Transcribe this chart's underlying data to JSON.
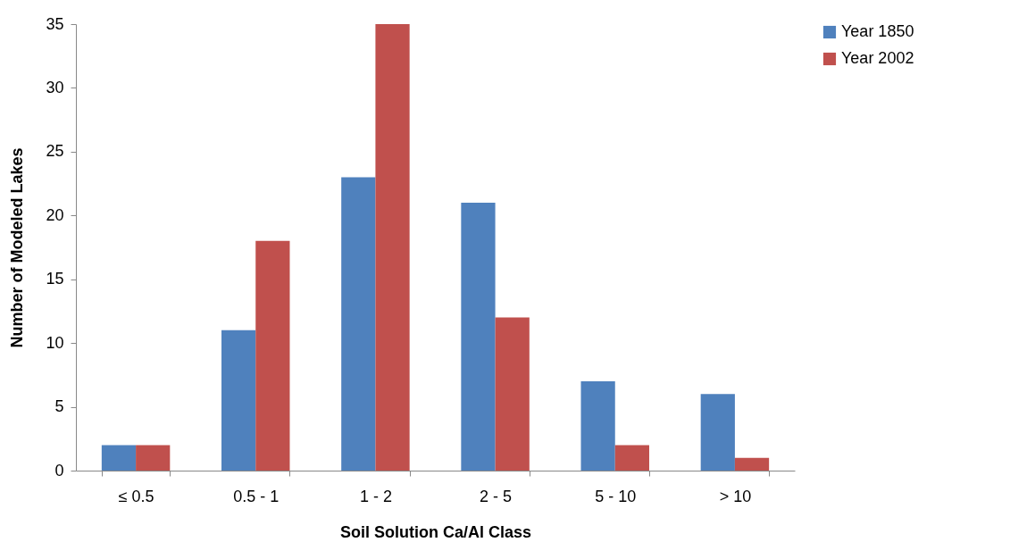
{
  "chart_data": {
    "type": "bar",
    "xlabel": "Soil Solution Ca/Al Class",
    "ylabel": "Number of Modeled Lakes",
    "categories": [
      "≤ 0.5",
      "0.5 - 1",
      "1 - 2",
      "2 - 5",
      "5 - 10",
      "> 10"
    ],
    "series": [
      {
        "name": "Year 1850",
        "color": "#4f81bd",
        "values": [
          2,
          11,
          23,
          21,
          7,
          6
        ]
      },
      {
        "name": "Year 2002",
        "color": "#c0504d",
        "values": [
          2,
          18,
          35,
          12,
          2,
          1
        ]
      }
    ],
    "ylim": [
      0,
      35
    ],
    "yticks": [
      0,
      5,
      10,
      15,
      20,
      25,
      30,
      35
    ],
    "grid": false,
    "legend": "right"
  }
}
